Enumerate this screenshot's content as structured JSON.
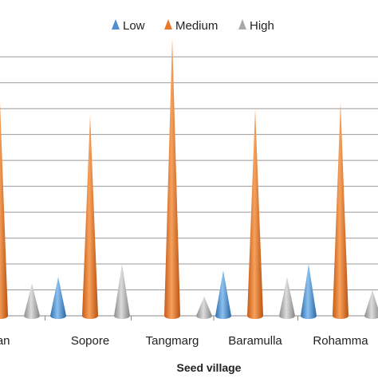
{
  "chart_data": {
    "type": "bar",
    "mark_shape": "cone",
    "categories": [
      "ttan",
      "Sopore",
      "Tangmarg",
      "Baramulla",
      "Rohamma"
    ],
    "series": [
      {
        "name": "Low",
        "values": [
          0,
          3,
          0,
          3.5,
          4
        ]
      },
      {
        "name": "Medium",
        "values": [
          16.5,
          15.5,
          21.5,
          16,
          16.5
        ]
      },
      {
        "name": "High",
        "values": [
          2.5,
          4,
          1.5,
          3,
          2
        ]
      }
    ],
    "colors": {
      "Low": "#4e8fd0",
      "Medium": "#e8782a",
      "High": "#a9a9a9"
    },
    "xlabel": "Seed village",
    "ylabel": "",
    "ylim": [
      0,
      21
    ],
    "grid": true,
    "legend": "top"
  }
}
